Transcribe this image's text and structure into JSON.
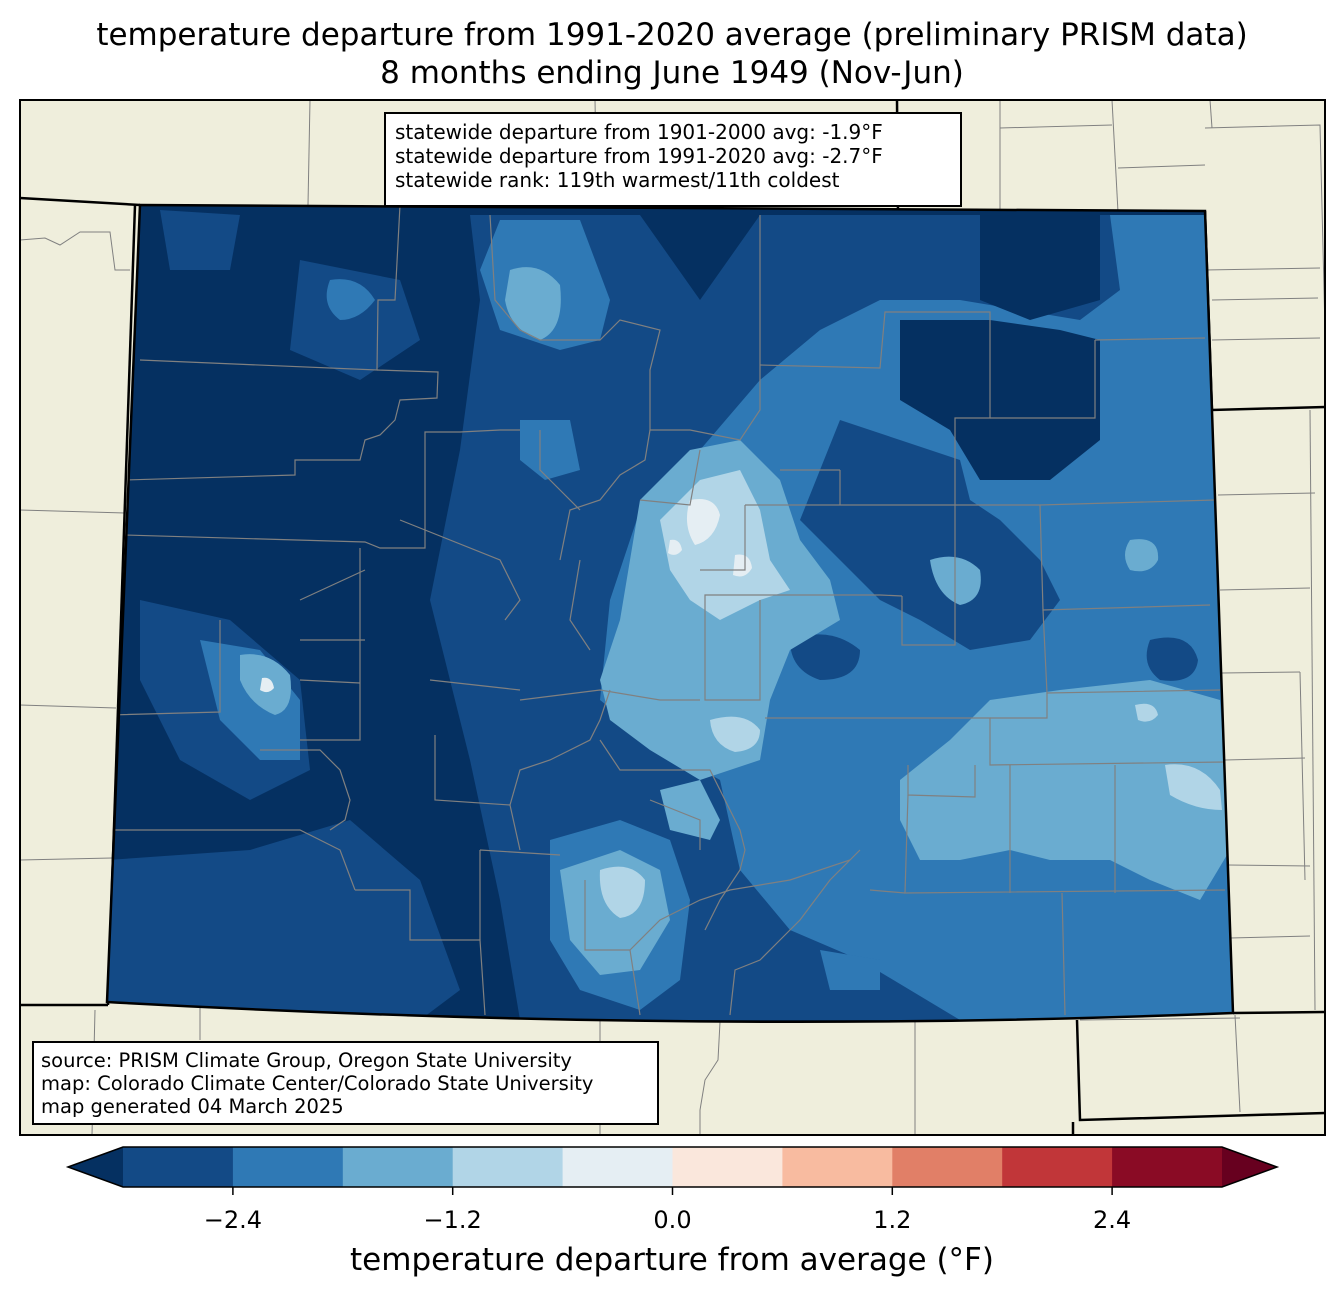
{
  "title": {
    "line1": "temperature departure from 1991-2020 average (preliminary PRISM data)",
    "line2": "8 months ending June 1949 (Nov-Jun)"
  },
  "stats": {
    "line1": "statewide departure from 1901-2000 avg: -1.9°F",
    "line2": "statewide departure from 1991-2020 avg: -2.7°F",
    "line3": "statewide rank: 119th warmest/11th coldest"
  },
  "source": {
    "line1": "source: PRISM Climate Group, Oregon State University",
    "line2": "map: Colorado Climate Center/Colorado State University",
    "line3": "map generated 04 March 2025"
  },
  "colorbar": {
    "label": "temperature departure from average (°F)",
    "min": -3.0,
    "max": 3.0,
    "step": 0.6,
    "ticks": [
      "−2.4",
      "−1.2",
      "0.0",
      "1.2",
      "2.4"
    ],
    "tick_values": [
      -2.4,
      -1.2,
      0.0,
      1.2,
      2.4
    ],
    "under_color": "#053061",
    "over_color": "#67001f",
    "colors": [
      "#134a86",
      "#2f79b5",
      "#6aacd0",
      "#b1d5e7",
      "#e5eef3",
      "#fae7dc",
      "#f8bba0",
      "#e17f67",
      "#c13639",
      "#8a0b25"
    ]
  },
  "colors": {
    "land": "#efeedc",
    "county_lines": "#808080",
    "state_lines": "#000000"
  }
}
